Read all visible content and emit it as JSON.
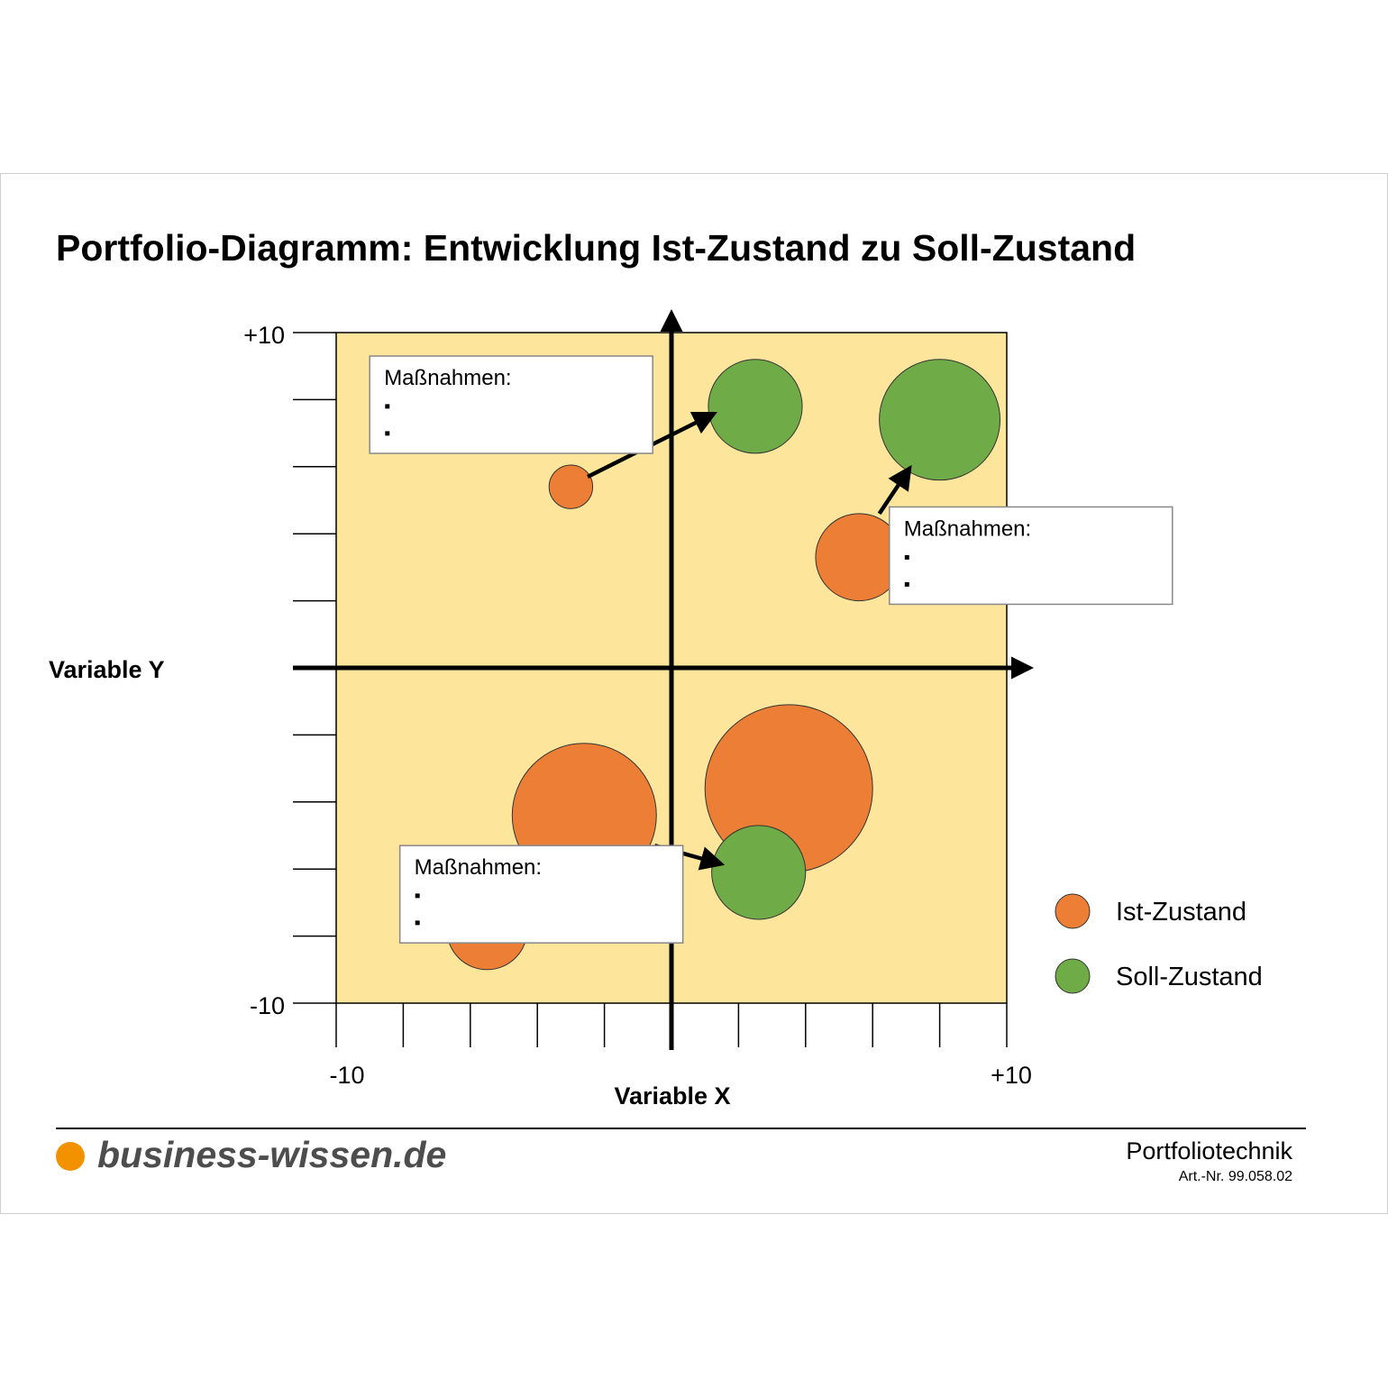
{
  "title": "Portfolio-Diagramm: Entwicklung Ist-Zustand zu Soll-Zustand",
  "footer": {
    "brand": "business-wissen.de",
    "topic": "Portfoliotechnik",
    "article_number": "Art.-Nr. 99.058.02"
  },
  "colors": {
    "background_area": "#fde69c",
    "ist": "#ec7f35",
    "soll": "#6fab46",
    "brand_dot": "#f39200"
  },
  "chart_data": {
    "type": "scatter",
    "subtype": "bubble",
    "xlabel": "Variable X",
    "ylabel": "Variable Y",
    "xlim": [
      -10,
      10
    ],
    "ylim": [
      -10,
      10
    ],
    "x_tick_labels": [
      "-10",
      "+10"
    ],
    "y_tick_labels": [
      "+10",
      "-10"
    ],
    "grid": false,
    "legend_position": "bottom-right",
    "series": [
      {
        "name": "Ist-Zustand",
        "color": "#ec7f35",
        "points": [
          {
            "x": -3.0,
            "y": 5.4,
            "size": 0.65
          },
          {
            "x": 5.6,
            "y": 3.3,
            "size": 1.3
          },
          {
            "x": -2.6,
            "y": -4.4,
            "size": 2.15
          },
          {
            "x": 3.5,
            "y": -3.6,
            "size": 2.5
          },
          {
            "x": -5.5,
            "y": -7.8,
            "size": 1.2
          }
        ]
      },
      {
        "name": "Soll-Zustand",
        "color": "#6fab46",
        "points": [
          {
            "x": 2.5,
            "y": 7.8,
            "size": 1.4
          },
          {
            "x": 8.0,
            "y": 7.4,
            "size": 1.8
          },
          {
            "x": 2.6,
            "y": -6.1,
            "size": 1.4
          }
        ]
      }
    ],
    "arrows": [
      {
        "from": [
          -2.5,
          5.7
        ],
        "to": [
          1.1,
          7.5
        ]
      },
      {
        "from": [
          6.2,
          4.6
        ],
        "to": [
          7.0,
          5.8
        ]
      },
      {
        "from": [
          -0.5,
          -5.3
        ],
        "to": [
          1.3,
          -5.8
        ]
      }
    ],
    "annotations": [
      {
        "title": "Maßnahmen:",
        "bullets": [
          "▪",
          "▪"
        ],
        "x": -9.0,
        "y": 9.3
      },
      {
        "title": "Maßnahmen:",
        "bullets": [
          "▪",
          "▪"
        ],
        "x": 6.5,
        "y": 4.8
      },
      {
        "title": "Maßnahmen:",
        "bullets": [
          "▪",
          "▪"
        ],
        "x": -8.1,
        "y": -5.3
      }
    ]
  }
}
